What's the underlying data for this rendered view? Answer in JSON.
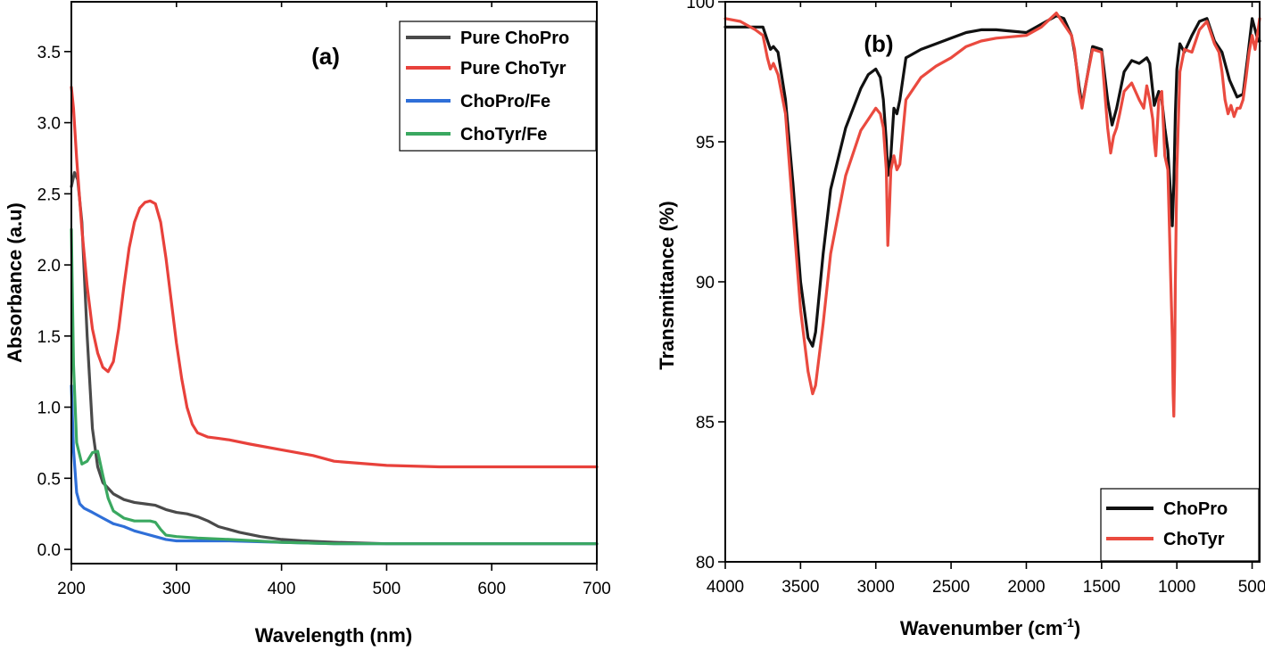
{
  "chart_data": [
    {
      "type": "line",
      "panel_label": "(a)",
      "xlabel": "Wavelength (nm)",
      "ylabel": "Absorbance (a.u)",
      "xlim": [
        200,
        700
      ],
      "ylim": [
        -0.1,
        3.85
      ],
      "x_ticks": [
        200,
        300,
        400,
        500,
        600,
        700
      ],
      "y_ticks": [
        0.0,
        0.5,
        1.0,
        1.5,
        2.0,
        2.5,
        3.0,
        3.5
      ],
      "x_tick_labels": [
        "200",
        "300",
        "400",
        "500",
        "600",
        "700"
      ],
      "y_tick_labels": [
        "0.0",
        "0.5",
        "1.0",
        "1.5",
        "2.0",
        "2.5",
        "3.0",
        "3.5"
      ],
      "legend_position": "top-right",
      "series": [
        {
          "name": "Pure ChoPro",
          "color": "#4a4a4a",
          "x": [
            200,
            203,
            206,
            210,
            215,
            220,
            225,
            230,
            240,
            250,
            260,
            270,
            280,
            290,
            300,
            310,
            320,
            330,
            340,
            360,
            380,
            400,
            420,
            450,
            500,
            550,
            600,
            650,
            700
          ],
          "y": [
            2.55,
            2.65,
            2.6,
            2.3,
            1.5,
            0.85,
            0.58,
            0.47,
            0.39,
            0.35,
            0.33,
            0.32,
            0.31,
            0.28,
            0.26,
            0.25,
            0.23,
            0.2,
            0.16,
            0.12,
            0.09,
            0.07,
            0.06,
            0.05,
            0.04,
            0.04,
            0.04,
            0.04,
            0.04
          ]
        },
        {
          "name": "Pure ChoTyr",
          "color": "#e8413b",
          "x": [
            200,
            202,
            205,
            210,
            215,
            220,
            225,
            230,
            235,
            240,
            245,
            250,
            255,
            260,
            265,
            270,
            275,
            280,
            285,
            290,
            295,
            300,
            305,
            310,
            315,
            320,
            330,
            340,
            350,
            370,
            400,
            430,
            450,
            500,
            550,
            600,
            650,
            700
          ],
          "y": [
            3.25,
            3.1,
            2.75,
            2.25,
            1.85,
            1.55,
            1.38,
            1.28,
            1.25,
            1.32,
            1.55,
            1.85,
            2.12,
            2.3,
            2.4,
            2.44,
            2.45,
            2.43,
            2.3,
            2.05,
            1.75,
            1.45,
            1.2,
            1.0,
            0.88,
            0.82,
            0.79,
            0.78,
            0.77,
            0.74,
            0.7,
            0.66,
            0.62,
            0.59,
            0.58,
            0.58,
            0.58,
            0.58
          ]
        },
        {
          "name": "ChoPro/Fe",
          "color": "#2f6fd8",
          "x": [
            200,
            202,
            205,
            208,
            212,
            220,
            230,
            240,
            250,
            260,
            270,
            280,
            290,
            300,
            320,
            350,
            400,
            450,
            500,
            600,
            700
          ],
          "y": [
            1.15,
            0.7,
            0.4,
            0.32,
            0.29,
            0.26,
            0.22,
            0.18,
            0.16,
            0.13,
            0.11,
            0.09,
            0.07,
            0.06,
            0.06,
            0.06,
            0.05,
            0.04,
            0.04,
            0.04,
            0.04
          ]
        },
        {
          "name": "ChoTyr/Fe",
          "color": "#3aa860",
          "x": [
            200,
            202,
            205,
            210,
            215,
            220,
            225,
            230,
            235,
            240,
            250,
            260,
            270,
            275,
            280,
            285,
            290,
            300,
            320,
            350,
            400,
            450,
            500,
            600,
            700
          ],
          "y": [
            2.25,
            1.3,
            0.75,
            0.6,
            0.62,
            0.68,
            0.69,
            0.52,
            0.36,
            0.27,
            0.22,
            0.2,
            0.2,
            0.2,
            0.19,
            0.14,
            0.1,
            0.09,
            0.08,
            0.07,
            0.05,
            0.04,
            0.04,
            0.04,
            0.04
          ]
        }
      ]
    },
    {
      "type": "line",
      "panel_label": "(b)",
      "xlabel": "Wavenumber (cm",
      "xlabel_superscript": "-1",
      "xlabel_suffix": ")",
      "ylabel": "Transmittance (%)",
      "xlim": [
        4000,
        450
      ],
      "ylim": [
        80,
        100
      ],
      "x_ticks": [
        4000,
        3500,
        3000,
        2500,
        2000,
        1500,
        1000,
        500
      ],
      "y_ticks": [
        80,
        85,
        90,
        95,
        100
      ],
      "x_tick_labels": [
        "4000",
        "3500",
        "3000",
        "2500",
        "2000",
        "1500",
        "1000",
        "500"
      ],
      "y_tick_labels": [
        "80",
        "85",
        "90",
        "95",
        "100"
      ],
      "legend_position": "bottom-right",
      "series": [
        {
          "name": "ChoPro",
          "color": "#111111",
          "x": [
            4000,
            3900,
            3800,
            3750,
            3700,
            3680,
            3650,
            3600,
            3550,
            3500,
            3450,
            3420,
            3400,
            3350,
            3300,
            3200,
            3100,
            3050,
            3000,
            2970,
            2950,
            2930,
            2920,
            2900,
            2880,
            2860,
            2840,
            2800,
            2700,
            2600,
            2500,
            2400,
            2300,
            2200,
            2000,
            1900,
            1800,
            1750,
            1700,
            1680,
            1650,
            1630,
            1600,
            1560,
            1500,
            1460,
            1430,
            1400,
            1350,
            1300,
            1250,
            1200,
            1180,
            1150,
            1120,
            1100,
            1080,
            1060,
            1040,
            1030,
            1020,
            1010,
            1000,
            980,
            950,
            900,
            850,
            800,
            750,
            700,
            650,
            600,
            560,
            530,
            500,
            480,
            460,
            450
          ],
          "y": [
            99.1,
            99.1,
            99.1,
            99.1,
            98.3,
            98.4,
            98.2,
            96.5,
            93.5,
            90.0,
            88.0,
            87.7,
            88.2,
            91.0,
            93.3,
            95.5,
            96.9,
            97.4,
            97.6,
            97.3,
            96.5,
            95.0,
            93.8,
            94.5,
            96.2,
            96.0,
            96.5,
            98.0,
            98.3,
            98.5,
            98.7,
            98.9,
            99.0,
            99.0,
            98.9,
            99.2,
            99.5,
            99.4,
            98.8,
            98.2,
            97.0,
            96.3,
            97.2,
            98.4,
            98.3,
            96.5,
            95.6,
            96.2,
            97.5,
            97.9,
            97.8,
            98.0,
            97.8,
            96.3,
            96.8,
            96.5,
            95.5,
            94.7,
            93.0,
            92.0,
            93.5,
            96.0,
            97.6,
            98.5,
            98.2,
            98.8,
            99.3,
            99.4,
            98.6,
            98.2,
            97.2,
            96.6,
            96.7,
            98.0,
            99.4,
            99.0,
            98.6,
            98.6
          ]
        },
        {
          "name": "ChoTyr",
          "color": "#ea4a3f",
          "x": [
            4000,
            3900,
            3800,
            3750,
            3720,
            3700,
            3680,
            3650,
            3600,
            3550,
            3500,
            3450,
            3420,
            3400,
            3350,
            3300,
            3200,
            3100,
            3050,
            3000,
            2970,
            2950,
            2930,
            2920,
            2910,
            2900,
            2880,
            2860,
            2840,
            2800,
            2700,
            2600,
            2500,
            2400,
            2300,
            2200,
            2000,
            1900,
            1800,
            1750,
            1700,
            1680,
            1650,
            1630,
            1600,
            1560,
            1500,
            1460,
            1440,
            1420,
            1400,
            1380,
            1350,
            1300,
            1250,
            1220,
            1200,
            1180,
            1160,
            1150,
            1140,
            1120,
            1100,
            1080,
            1060,
            1050,
            1040,
            1030,
            1025,
            1020,
            1015,
            1010,
            1000,
            980,
            950,
            900,
            850,
            800,
            750,
            720,
            700,
            680,
            660,
            640,
            620,
            600,
            580,
            560,
            540,
            520,
            500,
            480,
            460,
            450
          ],
          "y": [
            99.4,
            99.3,
            99.0,
            98.8,
            98.0,
            97.6,
            97.8,
            97.4,
            96.0,
            92.5,
            89.0,
            86.8,
            86.0,
            86.3,
            88.5,
            91.0,
            93.8,
            95.4,
            95.8,
            96.2,
            96.0,
            95.5,
            94.0,
            91.3,
            92.5,
            94.0,
            94.5,
            94.0,
            94.2,
            96.5,
            97.3,
            97.7,
            98.0,
            98.4,
            98.6,
            98.7,
            98.8,
            99.1,
            99.6,
            99.2,
            98.8,
            98.3,
            96.8,
            96.2,
            97.2,
            98.3,
            98.2,
            95.5,
            94.6,
            95.2,
            95.5,
            96.0,
            96.8,
            97.1,
            96.5,
            96.2,
            97.0,
            96.5,
            95.8,
            95.0,
            94.5,
            96.5,
            96.8,
            94.5,
            94.0,
            92.0,
            90.0,
            88.0,
            86.0,
            85.2,
            87.0,
            90.0,
            94.0,
            97.5,
            98.3,
            98.2,
            99.0,
            99.3,
            98.5,
            98.2,
            97.5,
            96.5,
            96.0,
            96.3,
            95.9,
            96.2,
            96.2,
            96.5,
            97.3,
            98.2,
            98.8,
            98.3,
            99.0,
            99.4
          ]
        }
      ]
    }
  ]
}
